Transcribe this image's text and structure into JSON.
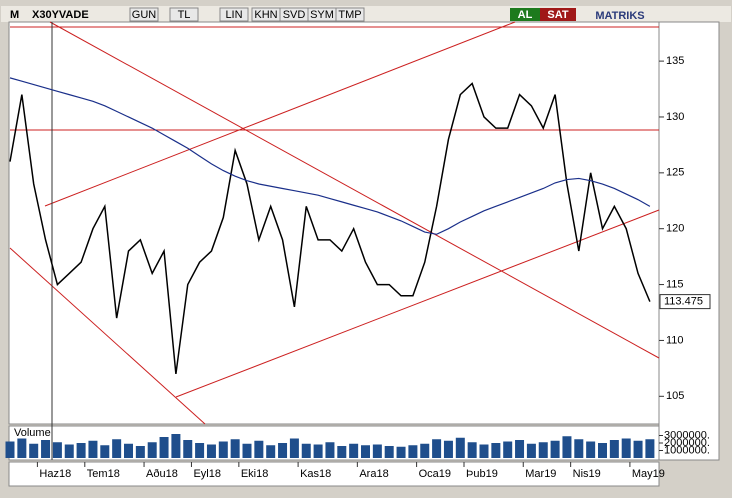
{
  "toolbar": {
    "logo": "M",
    "symbol": "X30YVADE",
    "buttons": [
      "GUN",
      "TL",
      "LIN",
      "KHN",
      "SVD",
      "SYM",
      "TMP"
    ],
    "buy": "AL",
    "sell": "SAT",
    "brand": "MATRIKS"
  },
  "chart_data": {
    "type": "line",
    "categories": [
      "",
      null,
      null,
      null,
      "Haz18",
      null,
      null,
      null,
      "Tem18",
      null,
      null,
      null,
      null,
      "Aðu18",
      null,
      null,
      null,
      "Eyl18",
      null,
      null,
      null,
      "Eki18",
      null,
      null,
      null,
      null,
      "Kas18",
      null,
      null,
      null,
      null,
      "Ara18",
      null,
      null,
      null,
      null,
      "Oca19",
      null,
      null,
      null,
      "Þub19",
      null,
      null,
      null,
      null,
      "Mar19",
      null,
      null,
      null,
      "Nis19",
      null,
      null,
      null,
      null,
      "May19"
    ],
    "series": [
      {
        "color": "#000000",
        "values": [
          126,
          132,
          124,
          119,
          115,
          116,
          117,
          120,
          122,
          112,
          118,
          119,
          116,
          118,
          107,
          115,
          117,
          118,
          121,
          127,
          124,
          119,
          122,
          119,
          113,
          122,
          119,
          119,
          118,
          120,
          117,
          115,
          115,
          114,
          114,
          117,
          122,
          128,
          132,
          133,
          130,
          129,
          129,
          132,
          131,
          129,
          132,
          124,
          118,
          125,
          120,
          122,
          120,
          116,
          113.475
        ]
      },
      {
        "color": "#1a2f8a",
        "values": [
          133.5,
          133.2,
          132.9,
          132.6,
          132.3,
          132,
          131.7,
          131.4,
          131,
          130.5,
          130,
          129.5,
          129,
          128.4,
          127.8,
          127.2,
          126.5,
          125.8,
          125.2,
          124.7,
          124.3,
          124,
          123.8,
          123.6,
          123.4,
          123.2,
          123,
          122.7,
          122.4,
          122.1,
          121.8,
          121.5,
          121.1,
          120.7,
          120.2,
          119.7,
          119.5,
          120,
          120.6,
          121.1,
          121.6,
          122,
          122.4,
          122.8,
          123.2,
          123.6,
          124.1,
          124.4,
          124.5,
          124.3,
          124,
          123.6,
          123.1,
          122.6,
          122
        ]
      }
    ],
    "ylim": [
      102.7,
      138.5
    ],
    "yticks": [
      105,
      110,
      115,
      120,
      125,
      130,
      135
    ],
    "volume": {
      "label": "Volume",
      "color": "#1f4e8c",
      "ylim": [
        0,
        4000000
      ],
      "yticks": [
        {
          "value": 1000000,
          "label": "1000000."
        },
        {
          "value": 2000000,
          "label": "2000000."
        },
        {
          "value": 3000000,
          "label": "3000000."
        }
      ],
      "values": [
        2200000,
        2600000,
        1900000,
        2400000,
        2100000,
        1800000,
        2000000,
        2300000,
        1700000,
        2500000,
        1900000,
        1600000,
        2100000,
        2800000,
        3200000,
        2400000,
        2000000,
        1800000,
        2200000,
        2500000,
        1900000,
        2300000,
        1700000,
        2000000,
        2600000,
        1900000,
        1800000,
        2100000,
        1600000,
        1900000,
        1700000,
        1800000,
        1600000,
        1500000,
        1700000,
        1900000,
        2500000,
        2300000,
        2700000,
        2100000,
        1800000,
        2000000,
        2200000,
        2400000,
        1900000,
        2100000,
        2300000,
        2900000,
        2500000,
        2200000,
        2000000,
        2400000,
        2600000,
        2300000,
        2500000
      ]
    }
  }
}
